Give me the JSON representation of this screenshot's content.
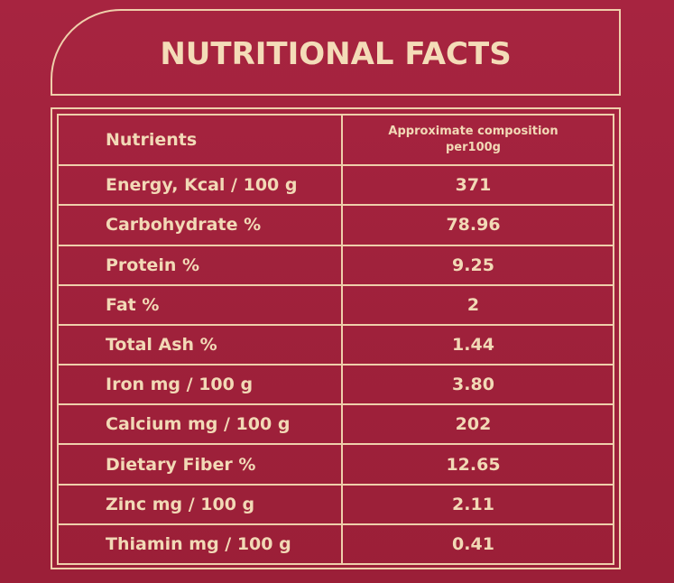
{
  "title": "NUTRITIONAL FACTS",
  "table": {
    "header": {
      "nutrients": "Nutrients",
      "composition_line1": "Approximate composition",
      "composition_line2": "per100g"
    },
    "rows": [
      {
        "nutrient": "Energy, Kcal / 100 g",
        "value": "371"
      },
      {
        "nutrient": "Carbohydrate %",
        "value": "78.96"
      },
      {
        "nutrient": "Protein %",
        "value": "9.25"
      },
      {
        "nutrient": "Fat %",
        "value": "2"
      },
      {
        "nutrient": "Total Ash %",
        "value": "1.44"
      },
      {
        "nutrient": "Iron mg / 100 g",
        "value": "3.80"
      },
      {
        "nutrient": "Calcium mg / 100 g",
        "value": "202"
      },
      {
        "nutrient": "Dietary Fiber %",
        "value": "12.65"
      },
      {
        "nutrient": "Zinc mg / 100 g",
        "value": "2.11"
      },
      {
        "nutrient": "Thiamin mg / 100 g",
        "value": "0.41"
      }
    ]
  },
  "colors": {
    "background": "#a4233e",
    "text_and_lines": "#f2d9b6"
  }
}
